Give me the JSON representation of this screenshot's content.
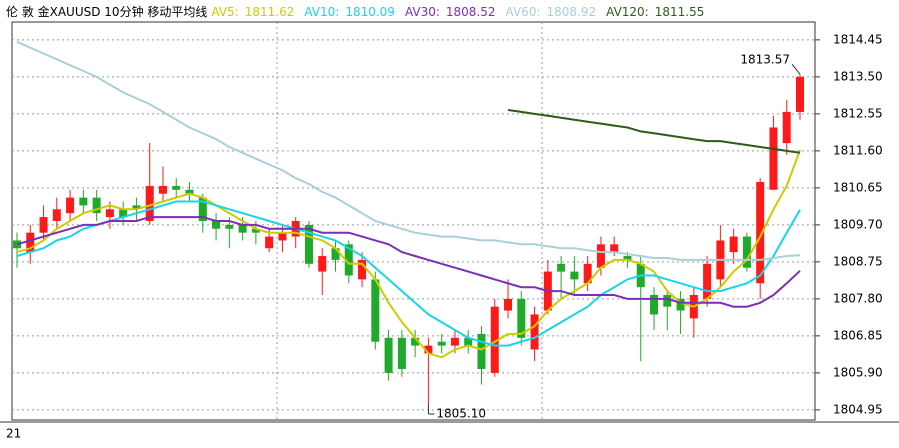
{
  "chart_data": {
    "type": "candlestick",
    "title": "伦 敦 金XAUUSD 10分钟 移动平均线",
    "footer_label": "21",
    "up_color": "#ff1a1a",
    "down_color": "#1faa2a",
    "grid": true,
    "ylim": [
      1804.69,
      1814.96
    ],
    "yticks": [
      1814.45,
      {
        "value": 1813.5,
        "label": "1813.50"
      },
      1812.55,
      {
        "value": 1811.6,
        "label": "1811.60"
      },
      1810.65,
      {
        "value": 1809.7,
        "label": "1809.70"
      },
      1808.75,
      {
        "value": 1807.8,
        "label": "1807.80"
      },
      1806.85,
      {
        "value": 1805.9,
        "label": "1805.90"
      },
      1804.95
    ],
    "open": [
      1809.3,
      1809.0,
      1809.5,
      1809.8,
      1810.0,
      1810.4,
      1810.4,
      1809.9,
      1810.1,
      1810.2,
      1809.8,
      1810.5,
      1810.7,
      1810.6,
      1810.4,
      1809.8,
      1809.7,
      1809.7,
      1809.6,
      1809.1,
      1809.3,
      1809.4,
      1809.7,
      1808.5,
      1809.1,
      1809.2,
      1808.3,
      1808.3,
      1806.8,
      1806.8,
      1806.8,
      1806.4,
      1806.7,
      1806.6,
      1806.8,
      1806.9,
      1805.9,
      1807.5,
      1807.8,
      1806.5,
      1807.5,
      1808.7,
      1808.5,
      1808.2,
      1808.6,
      1809.0,
      1808.9,
      1808.7,
      1807.9,
      1807.9,
      1807.8,
      1807.3,
      1807.8,
      1808.3,
      1809.0,
      1809.4,
      1808.2,
      1810.6,
      1811.8,
      1812.6
    ],
    "high": [
      1809.5,
      1809.7,
      1810.2,
      1810.4,
      1810.6,
      1810.6,
      1810.6,
      1810.3,
      1810.3,
      1810.4,
      1811.8,
      1811.2,
      1810.9,
      1810.8,
      1810.5,
      1810.0,
      1809.9,
      1809.9,
      1809.8,
      1809.6,
      1809.7,
      1809.9,
      1809.8,
      1809.1,
      1809.3,
      1809.3,
      1809.0,
      1808.5,
      1807.0,
      1807.0,
      1807.0,
      1806.8,
      1806.9,
      1807.0,
      1807.0,
      1807.1,
      1807.8,
      1808.3,
      1808.0,
      1807.6,
      1808.8,
      1808.9,
      1808.9,
      1808.9,
      1809.4,
      1809.4,
      1809.0,
      1808.9,
      1808.1,
      1808.0,
      1808.0,
      1808.1,
      1808.9,
      1809.7,
      1809.6,
      1809.5,
      1810.9,
      1812.5,
      1812.9,
      1813.57
    ],
    "low": [
      1808.6,
      1808.7,
      1809.3,
      1809.6,
      1809.8,
      1810.0,
      1809.8,
      1809.6,
      1809.7,
      1809.8,
      1809.7,
      1810.3,
      1810.4,
      1810.3,
      1809.5,
      1809.3,
      1809.1,
      1809.3,
      1809.2,
      1809.0,
      1809.0,
      1809.1,
      1808.6,
      1807.9,
      1808.5,
      1808.2,
      1808.1,
      1806.5,
      1805.7,
      1805.8,
      1806.3,
      1805.1,
      1806.4,
      1806.4,
      1806.4,
      1805.6,
      1805.8,
      1807.3,
      1806.6,
      1806.2,
      1807.4,
      1807.8,
      1807.9,
      1808.0,
      1808.4,
      1808.9,
      1808.6,
      1806.2,
      1807.0,
      1807.0,
      1806.9,
      1806.8,
      1807.6,
      1808.1,
      1808.7,
      1808.5,
      1807.8,
      1810.6,
      1811.5,
      1812.4
    ],
    "close": [
      1809.1,
      1809.5,
      1809.9,
      1810.1,
      1810.4,
      1810.2,
      1810.0,
      1810.1,
      1809.9,
      1810.1,
      1810.7,
      1810.7,
      1810.6,
      1810.5,
      1809.8,
      1809.6,
      1809.6,
      1809.5,
      1809.5,
      1809.4,
      1809.5,
      1809.8,
      1808.7,
      1808.9,
      1808.8,
      1808.4,
      1808.8,
      1806.7,
      1805.9,
      1806.0,
      1806.6,
      1806.6,
      1806.6,
      1806.8,
      1806.6,
      1806.0,
      1807.6,
      1807.8,
      1806.8,
      1807.4,
      1808.5,
      1808.5,
      1808.3,
      1808.7,
      1809.2,
      1809.2,
      1808.8,
      1808.1,
      1807.4,
      1807.6,
      1807.5,
      1807.9,
      1808.7,
      1809.3,
      1809.4,
      1808.6,
      1810.8,
      1812.2,
      1812.6,
      1813.5
    ],
    "series": [
      {
        "name": "AV5:",
        "color": "#cccc00",
        "values": [
          1809.0,
          1809.1,
          1809.3,
          1809.6,
          1809.8,
          1810.0,
          1810.1,
          1810.2,
          1810.1,
          1810.1,
          1810.2,
          1810.3,
          1810.4,
          1810.5,
          1810.4,
          1810.2,
          1810.0,
          1809.8,
          1809.6,
          1809.5,
          1809.5,
          1809.5,
          1809.4,
          1809.3,
          1809.1,
          1808.7,
          1808.7,
          1808.3,
          1807.7,
          1807.2,
          1806.8,
          1806.4,
          1806.3,
          1806.5,
          1806.6,
          1806.5,
          1806.7,
          1806.9,
          1806.9,
          1807.1,
          1807.5,
          1807.8,
          1808.0,
          1808.2,
          1808.6,
          1808.8,
          1808.8,
          1808.7,
          1808.5,
          1808.0,
          1807.7,
          1807.6,
          1807.8,
          1808.1,
          1808.5,
          1808.8,
          1809.4,
          1810.1,
          1810.7,
          1811.62
        ]
      },
      {
        "name": "AV10:",
        "color": "#17d4ee",
        "values": [
          1808.9,
          1809.0,
          1809.1,
          1809.3,
          1809.4,
          1809.6,
          1809.7,
          1809.8,
          1809.9,
          1810.0,
          1810.1,
          1810.2,
          1810.3,
          1810.3,
          1810.3,
          1810.2,
          1810.1,
          1810.0,
          1809.9,
          1809.8,
          1809.7,
          1809.6,
          1809.5,
          1809.4,
          1809.3,
          1809.1,
          1808.9,
          1808.6,
          1808.3,
          1808.0,
          1807.7,
          1807.4,
          1807.2,
          1807.0,
          1806.8,
          1806.7,
          1806.6,
          1806.6,
          1806.7,
          1806.8,
          1807.0,
          1807.2,
          1807.4,
          1807.6,
          1807.9,
          1808.1,
          1808.3,
          1808.4,
          1808.4,
          1808.3,
          1808.2,
          1808.1,
          1808.0,
          1808.0,
          1808.1,
          1808.2,
          1808.4,
          1808.9,
          1809.5,
          1810.09
        ]
      },
      {
        "name": "AV30:",
        "color": "#7a2fb5",
        "values": [
          1809.2,
          1809.3,
          1809.4,
          1809.5,
          1809.6,
          1809.7,
          1809.7,
          1809.8,
          1809.8,
          1809.8,
          1809.9,
          1809.9,
          1809.9,
          1809.9,
          1809.9,
          1809.8,
          1809.8,
          1809.7,
          1809.7,
          1809.6,
          1809.6,
          1809.6,
          1809.6,
          1809.5,
          1809.5,
          1809.5,
          1809.4,
          1809.3,
          1809.2,
          1809.0,
          1808.9,
          1808.8,
          1808.7,
          1808.6,
          1808.5,
          1808.4,
          1808.3,
          1808.2,
          1808.1,
          1808.1,
          1808.0,
          1808.0,
          1807.9,
          1807.9,
          1807.9,
          1807.9,
          1807.8,
          1807.8,
          1807.8,
          1807.8,
          1807.7,
          1807.7,
          1807.7,
          1807.7,
          1807.6,
          1807.6,
          1807.7,
          1807.9,
          1808.2,
          1808.52
        ]
      },
      {
        "name": "AV60:",
        "color": "#a9d0d8",
        "values": [
          1814.4,
          1814.25,
          1814.1,
          1813.95,
          1813.8,
          1813.65,
          1813.5,
          1813.3,
          1813.1,
          1812.95,
          1812.8,
          1812.6,
          1812.4,
          1812.2,
          1812.05,
          1811.9,
          1811.7,
          1811.55,
          1811.4,
          1811.25,
          1811.1,
          1810.9,
          1810.75,
          1810.55,
          1810.4,
          1810.2,
          1810.0,
          1809.8,
          1809.7,
          1809.6,
          1809.5,
          1809.45,
          1809.4,
          1809.4,
          1809.35,
          1809.3,
          1809.3,
          1809.25,
          1809.2,
          1809.2,
          1809.15,
          1809.1,
          1809.1,
          1809.05,
          1809.0,
          1809.0,
          1808.95,
          1808.9,
          1808.85,
          1808.85,
          1808.8,
          1808.8,
          1808.8,
          1808.8,
          1808.8,
          1808.8,
          1808.8,
          1808.85,
          1808.9,
          1808.92
        ]
      },
      {
        "name": "AV120:",
        "color": "#2e5b18",
        "values": [
          null,
          null,
          null,
          null,
          null,
          null,
          null,
          null,
          null,
          null,
          null,
          null,
          null,
          null,
          null,
          null,
          null,
          null,
          null,
          null,
          null,
          null,
          null,
          null,
          null,
          null,
          null,
          null,
          null,
          null,
          null,
          null,
          null,
          null,
          null,
          null,
          null,
          1812.65,
          1812.6,
          1812.55,
          1812.5,
          1812.45,
          1812.4,
          1812.35,
          1812.3,
          1812.25,
          1812.2,
          1812.1,
          1812.05,
          1812.0,
          1811.95,
          1811.9,
          1811.85,
          1811.85,
          1811.8,
          1811.75,
          1811.7,
          1811.65,
          1811.6,
          1811.55
        ]
      }
    ],
    "annotations": [
      {
        "text": "1813.57",
        "value": 1813.57
      },
      {
        "text": "1805.10",
        "value": 1805.1
      }
    ]
  }
}
